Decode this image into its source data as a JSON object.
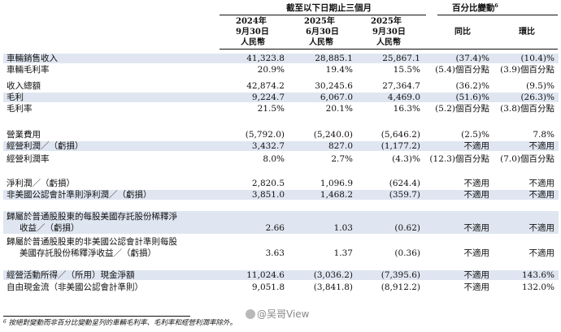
{
  "header": {
    "period_title": "截至以下日期止三個月",
    "change_title": "百分比變動",
    "change_footnote_mark": "6",
    "columns": [
      {
        "year": "2024年",
        "date": "9月30日",
        "currency": "人民幣"
      },
      {
        "year": "2025年",
        "date": "6月30日",
        "currency": "人民幣"
      },
      {
        "year": "2025年",
        "date": "9月30日",
        "currency": "人民幣"
      }
    ],
    "yoy": "同比",
    "qoq": "環比"
  },
  "rows": [
    {
      "label": "車輛銷售收入",
      "v": [
        "41,323.8",
        "28,885.1",
        "25,867.1",
        "(37.4)%",
        "(10.4)%"
      ]
    },
    {
      "label": "車輛毛利率",
      "v": [
        "20.9%",
        "19.4%",
        "15.5%",
        "(5.4)個百分點",
        "(3.9)個百分點"
      ]
    },
    {
      "label": "收入總額",
      "v": [
        "42,874.2",
        "30,245.6",
        "27,364.7",
        "(36.2)%",
        "(9.5)%"
      ]
    },
    {
      "label": "毛利",
      "v": [
        "9,224.7",
        "6,067.0",
        "4,469.0",
        "(51.6)%",
        "(26.3)%"
      ]
    },
    {
      "label": "毛利率",
      "v": [
        "21.5%",
        "20.1%",
        "16.3%",
        "(5.2)個百分點",
        "(3.8)個百分點"
      ]
    },
    {
      "label": "營業費用",
      "v": [
        "(5,792.0)",
        "(5,240.0)",
        "(5,646.2)",
        "(2.5)%",
        "7.8%"
      ]
    },
    {
      "label": "經營利潤／（虧損）",
      "v": [
        "3,432.7",
        "827.0",
        "(1,177.2)",
        "不適用",
        "不適用"
      ]
    },
    {
      "label": "經營利潤率",
      "v": [
        "8.0%",
        "2.7%",
        "(4.3)%",
        "(12.3)個百分點",
        "(7.0)個百分點"
      ]
    },
    {
      "label": "淨利潤／（虧損）",
      "v": [
        "2,820.5",
        "1,096.9",
        "(624.4)",
        "不適用",
        "不適用"
      ]
    },
    {
      "label": "非美國公認會計準則淨利潤／（虧損）",
      "v": [
        "3,851.0",
        "1,468.2",
        "(359.7)",
        "不適用",
        "不適用"
      ]
    },
    {
      "label": "歸屬於普通股股東的每股美國存託股份稀釋淨",
      "label2": "收益／（虧損）",
      "v": [
        "2.66",
        "1.03",
        "(0.62)",
        "不適用",
        "不適用"
      ]
    },
    {
      "label": "歸屬於普通股股東的非美國公認會計準則每股",
      "label2": "美國存託股份稀釋淨收益／（虧損）",
      "v": [
        "3.63",
        "1.37",
        "(0.36)",
        "不適用",
        "不適用"
      ]
    },
    {
      "label": "經營活動所得／（所用）現金淨額",
      "v": [
        "11,024.6",
        "(3,036.2)",
        "(7,395.6)",
        "不適用",
        "143.6%"
      ]
    },
    {
      "label": "自由現金流（非美國公認會計準則）",
      "v": [
        "9,051.8",
        "(3,841.8)",
        "(8,912.2)",
        "不適用",
        "132.0%"
      ]
    }
  ],
  "footnote": {
    "mark": "6",
    "text": "按絕對變動而非百分比變動呈列的車輛毛利率、毛利率和經營利潤率除外。"
  },
  "watermark": "@吴哥View",
  "colors": {
    "band": "#dfe6f1",
    "text": "#111111"
  }
}
